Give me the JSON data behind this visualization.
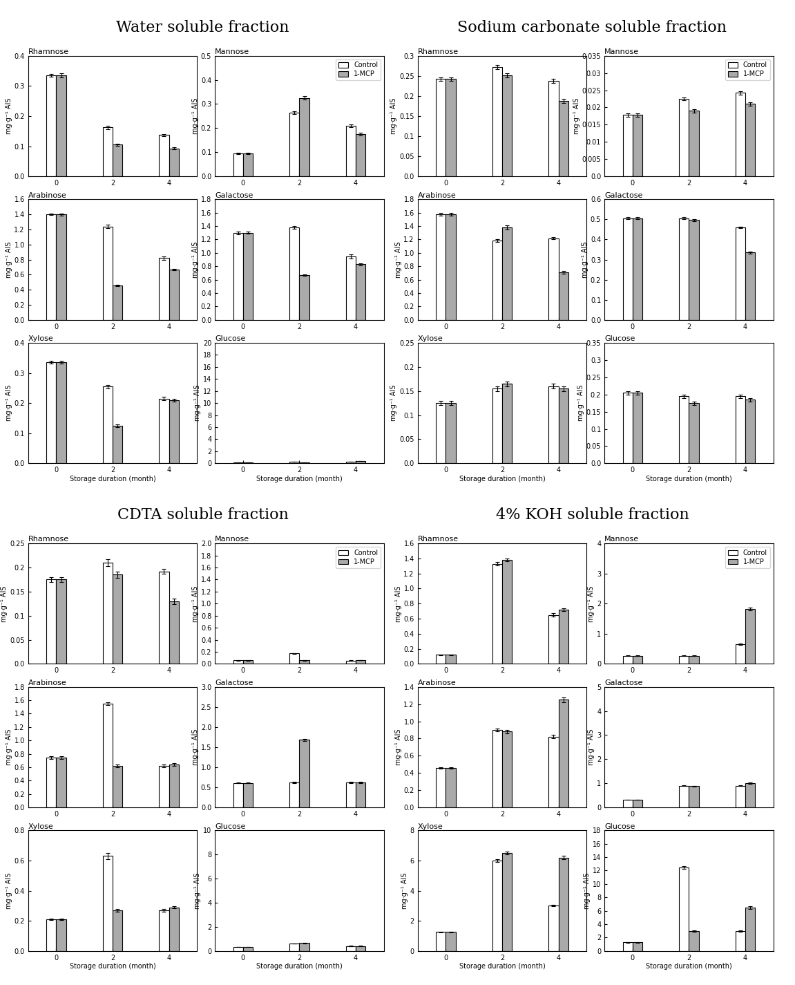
{
  "sections": [
    {
      "title": "Water soluble fraction",
      "subplots": [
        {
          "name": "Rhamnose",
          "ylim": [
            0.0,
            0.4
          ],
          "yticks": [
            0.0,
            0.1,
            0.2,
            0.3,
            0.4
          ],
          "control": [
            0.335,
            0.162,
            0.137
          ],
          "mcp": [
            0.335,
            0.105,
            0.093
          ],
          "control_err": [
            0.005,
            0.005,
            0.004
          ],
          "mcp_err": [
            0.006,
            0.004,
            0.003
          ],
          "ylabel": "mg·g⁻¹ AIS"
        },
        {
          "name": "Mannose",
          "ylim": [
            0.0,
            0.5
          ],
          "yticks": [
            0.0,
            0.1,
            0.2,
            0.3,
            0.4,
            0.5
          ],
          "control": [
            0.095,
            0.265,
            0.21
          ],
          "mcp": [
            0.095,
            0.325,
            0.175
          ],
          "control_err": [
            0.003,
            0.006,
            0.005
          ],
          "mcp_err": [
            0.003,
            0.007,
            0.005
          ],
          "ylabel": "mg·g⁻¹ AIS",
          "legend": true
        },
        {
          "name": "Arabinose",
          "ylim": [
            0.0,
            1.6
          ],
          "yticks": [
            0.0,
            0.2,
            0.4,
            0.6,
            0.8,
            1.0,
            1.2,
            1.4,
            1.6
          ],
          "control": [
            1.4,
            1.24,
            0.82
          ],
          "mcp": [
            1.4,
            0.46,
            0.67
          ],
          "control_err": [
            0.01,
            0.02,
            0.02
          ],
          "mcp_err": [
            0.015,
            0.01,
            0.01
          ],
          "ylabel": "mg·g⁻¹ AIS"
        },
        {
          "name": "Galactose",
          "ylim": [
            0.0,
            1.8
          ],
          "yticks": [
            0.0,
            0.2,
            0.4,
            0.6,
            0.8,
            1.0,
            1.2,
            1.4,
            1.6,
            1.8
          ],
          "control": [
            1.3,
            1.38,
            0.95
          ],
          "mcp": [
            1.3,
            0.67,
            0.83
          ],
          "control_err": [
            0.02,
            0.02,
            0.03
          ],
          "mcp_err": [
            0.015,
            0.01,
            0.015
          ],
          "ylabel": "mg·g⁻¹ AIS"
        },
        {
          "name": "Xylose",
          "ylim": [
            0.0,
            0.4
          ],
          "yticks": [
            0.0,
            0.1,
            0.2,
            0.3,
            0.4
          ],
          "control": [
            0.335,
            0.255,
            0.215
          ],
          "mcp": [
            0.335,
            0.125,
            0.21
          ],
          "control_err": [
            0.005,
            0.006,
            0.005
          ],
          "mcp_err": [
            0.005,
            0.004,
            0.004
          ],
          "ylabel": "mg·g⁻¹ AIS",
          "xlabel": "Storage duration (month)"
        },
        {
          "name": "Glucose",
          "ylim": [
            0,
            20
          ],
          "yticks": [
            0,
            2,
            4,
            6,
            8,
            10,
            12,
            14,
            16,
            18,
            20
          ],
          "control": [
            0.11,
            0.31,
            0.295
          ],
          "mcp": [
            0.11,
            0.12,
            0.345
          ],
          "control_err": [
            0.005,
            0.015,
            0.01
          ],
          "mcp_err": [
            0.005,
            0.005,
            0.01
          ],
          "ylabel": "mg·g⁻¹ AIS",
          "xlabel": "Storage duration (month)",
          "right_ylim": [
            0,
            20
          ],
          "right_yticks": [
            0,
            2,
            4,
            6,
            8,
            10,
            12,
            14,
            16,
            18,
            20
          ],
          "scale": 0.0556
        }
      ]
    },
    {
      "title": "Sodium carbonate soluble fraction",
      "subplots": [
        {
          "name": "Rhamnose",
          "ylim": [
            0.0,
            0.3
          ],
          "yticks": [
            0.0,
            0.05,
            0.1,
            0.15,
            0.2,
            0.25,
            0.3
          ],
          "control": [
            0.242,
            0.272,
            0.237
          ],
          "mcp": [
            0.242,
            0.252,
            0.188
          ],
          "control_err": [
            0.005,
            0.005,
            0.005
          ],
          "mcp_err": [
            0.005,
            0.005,
            0.005
          ],
          "ylabel": "mg·g⁻¹ AIS"
        },
        {
          "name": "Mannose",
          "ylim": [
            0.0,
            0.035
          ],
          "yticks": [
            0.0,
            0.005,
            0.01,
            0.015,
            0.02,
            0.025,
            0.03,
            0.035
          ],
          "control": [
            0.0178,
            0.0225,
            0.0243
          ],
          "mcp": [
            0.0178,
            0.019,
            0.021
          ],
          "control_err": [
            0.0005,
            0.0005,
            0.0005
          ],
          "mcp_err": [
            0.0005,
            0.0005,
            0.0005
          ],
          "ylabel": "mg·g⁻¹ AIS",
          "legend": true
        },
        {
          "name": "Arabinose",
          "ylim": [
            0.0,
            1.8
          ],
          "yticks": [
            0.0,
            0.2,
            0.4,
            0.6,
            0.8,
            1.0,
            1.2,
            1.4,
            1.6,
            1.8
          ],
          "control": [
            1.58,
            1.18,
            1.22
          ],
          "mcp": [
            1.58,
            1.38,
            0.71
          ],
          "control_err": [
            0.02,
            0.02,
            0.02
          ],
          "mcp_err": [
            0.02,
            0.03,
            0.02
          ],
          "ylabel": "mg·g⁻¹ AIS"
        },
        {
          "name": "Galactose",
          "ylim": [
            0.0,
            0.6
          ],
          "yticks": [
            0.0,
            0.1,
            0.2,
            0.3,
            0.4,
            0.5,
            0.6
          ],
          "control": [
            0.505,
            0.505,
            0.46
          ],
          "mcp": [
            0.505,
            0.497,
            0.335
          ],
          "control_err": [
            0.005,
            0.005,
            0.005
          ],
          "mcp_err": [
            0.005,
            0.005,
            0.005
          ],
          "ylabel": "mg·g⁻¹ AIS"
        },
        {
          "name": "Xylose",
          "ylim": [
            0.0,
            0.25
          ],
          "yticks": [
            0.0,
            0.05,
            0.1,
            0.15,
            0.2,
            0.25
          ],
          "control": [
            0.125,
            0.155,
            0.16
          ],
          "mcp": [
            0.125,
            0.165,
            0.155
          ],
          "control_err": [
            0.004,
            0.005,
            0.005
          ],
          "mcp_err": [
            0.004,
            0.005,
            0.005
          ],
          "ylabel": "mg·g⁻¹ AIS",
          "xlabel": "Storage duration (month)"
        },
        {
          "name": "Glucose",
          "ylim": [
            0.0,
            0.35
          ],
          "yticks": [
            0.0,
            0.05,
            0.1,
            0.15,
            0.2,
            0.25,
            0.3,
            0.35
          ],
          "control": [
            0.205,
            0.195,
            0.195
          ],
          "mcp": [
            0.205,
            0.175,
            0.185
          ],
          "control_err": [
            0.005,
            0.005,
            0.005
          ],
          "mcp_err": [
            0.005,
            0.005,
            0.005
          ],
          "ylabel": "mg·g⁻¹ AIS",
          "xlabel": "Storage duration (month)"
        }
      ]
    },
    {
      "title": "CDTA soluble fraction",
      "subplots": [
        {
          "name": "Rhamnose",
          "ylim": [
            0.0,
            0.25
          ],
          "yticks": [
            0.0,
            0.05,
            0.1,
            0.15,
            0.2,
            0.25
          ],
          "control": [
            0.175,
            0.21,
            0.192
          ],
          "mcp": [
            0.175,
            0.185,
            0.13
          ],
          "control_err": [
            0.005,
            0.007,
            0.005
          ],
          "mcp_err": [
            0.005,
            0.006,
            0.006
          ],
          "ylabel": "mg·g⁻¹ AIS"
        },
        {
          "name": "Mannose",
          "ylim": [
            0.0,
            2.0
          ],
          "yticks": [
            0.0,
            0.2,
            0.4,
            0.6,
            0.8,
            1.0,
            1.2,
            1.4,
            1.6,
            1.8,
            2.0
          ],
          "control": [
            0.058,
            0.175,
            0.055
          ],
          "mcp": [
            0.058,
            0.06,
            0.065
          ],
          "control_err": [
            0.003,
            0.006,
            0.003
          ],
          "mcp_err": [
            0.003,
            0.003,
            0.003
          ],
          "ylabel": "mg·g⁻¹ AIS",
          "legend": true
        },
        {
          "name": "Arabinose",
          "ylim": [
            0.0,
            1.8
          ],
          "yticks": [
            0.0,
            0.2,
            0.4,
            0.6,
            0.8,
            1.0,
            1.2,
            1.4,
            1.6,
            1.8
          ],
          "control": [
            0.74,
            1.55,
            0.62
          ],
          "mcp": [
            0.74,
            0.62,
            0.64
          ],
          "control_err": [
            0.02,
            0.02,
            0.02
          ],
          "mcp_err": [
            0.02,
            0.02,
            0.02
          ],
          "ylabel": "mg·g⁻¹ AIS"
        },
        {
          "name": "Galactose",
          "ylim": [
            0.0,
            3.0
          ],
          "yticks": [
            0.0,
            0.5,
            1.0,
            1.5,
            2.0,
            2.5,
            3.0
          ],
          "control": [
            0.61,
            0.62,
            0.62
          ],
          "mcp": [
            0.61,
            1.68,
            0.62
          ],
          "control_err": [
            0.01,
            0.01,
            0.01
          ],
          "mcp_err": [
            0.01,
            0.03,
            0.01
          ],
          "ylabel": "mg·g⁻¹ AIS"
        },
        {
          "name": "Xylose",
          "ylim": [
            0.0,
            0.8
          ],
          "yticks": [
            0.0,
            0.2,
            0.4,
            0.6,
            0.8
          ],
          "control": [
            0.21,
            0.63,
            0.27
          ],
          "mcp": [
            0.21,
            0.27,
            0.29
          ],
          "control_err": [
            0.005,
            0.02,
            0.008
          ],
          "mcp_err": [
            0.005,
            0.008,
            0.009
          ],
          "ylabel": "mg·g⁻¹ AIS",
          "xlabel": "Storage duration (month)"
        },
        {
          "name": "Glucose",
          "ylim": [
            0,
            10
          ],
          "yticks": [
            0,
            2,
            4,
            6,
            8,
            10
          ],
          "control": [
            0.315,
            0.615,
            0.415
          ],
          "mcp": [
            0.315,
            0.65,
            0.415
          ],
          "control_err": [
            0.01,
            0.02,
            0.01
          ],
          "mcp_err": [
            0.01,
            0.02,
            0.01
          ],
          "ylabel": "mg·g⁻¹ AIS",
          "xlabel": "Storage duration (month)"
        }
      ]
    },
    {
      "title": "4% KOH soluble fraction",
      "subplots": [
        {
          "name": "Rhamnose",
          "ylim": [
            0.0,
            1.6
          ],
          "yticks": [
            0.0,
            0.2,
            0.4,
            0.6,
            0.8,
            1.0,
            1.2,
            1.4,
            1.6
          ],
          "control": [
            0.12,
            1.33,
            0.65
          ],
          "mcp": [
            0.12,
            1.38,
            0.72
          ],
          "control_err": [
            0.005,
            0.02,
            0.02
          ],
          "mcp_err": [
            0.005,
            0.02,
            0.02
          ],
          "ylabel": "mg·g⁻¹ AIS"
        },
        {
          "name": "Mannose",
          "ylim": [
            0,
            4
          ],
          "yticks": [
            0,
            1,
            2,
            3,
            4
          ],
          "control": [
            0.27,
            0.27,
            0.65
          ],
          "mcp": [
            0.27,
            0.27,
            1.82
          ],
          "control_err": [
            0.01,
            0.01,
            0.02
          ],
          "mcp_err": [
            0.01,
            0.01,
            0.05
          ],
          "ylabel": "mg·g⁻¹ AIS",
          "legend": true
        },
        {
          "name": "Arabinose",
          "ylim": [
            0.0,
            1.4
          ],
          "yticks": [
            0.0,
            0.2,
            0.4,
            0.6,
            0.8,
            1.0,
            1.2,
            1.4
          ],
          "control": [
            0.46,
            0.9,
            0.82
          ],
          "mcp": [
            0.46,
            0.88,
            1.25
          ],
          "control_err": [
            0.01,
            0.02,
            0.02
          ],
          "mcp_err": [
            0.01,
            0.02,
            0.03
          ],
          "ylabel": "mg·g⁻¹ AIS"
        },
        {
          "name": "Galactose",
          "ylim": [
            0,
            5
          ],
          "yticks": [
            0,
            1,
            2,
            3,
            4,
            5
          ],
          "control": [
            0.32,
            0.9,
            0.9
          ],
          "mcp": [
            0.32,
            0.88,
            1.0
          ],
          "control_err": [
            0.01,
            0.02,
            0.02
          ],
          "mcp_err": [
            0.01,
            0.02,
            0.03
          ],
          "ylabel": "mg·g⁻¹ AIS"
        },
        {
          "name": "Xylose",
          "ylim": [
            0,
            8
          ],
          "yticks": [
            0,
            2,
            4,
            6,
            8
          ],
          "control": [
            1.25,
            6.0,
            3.0
          ],
          "mcp": [
            1.25,
            6.5,
            6.2
          ],
          "control_err": [
            0.03,
            0.1,
            0.05
          ],
          "mcp_err": [
            0.03,
            0.1,
            0.1
          ],
          "ylabel": "mg·g⁻¹ AIS",
          "xlabel": "Storage duration (month)"
        },
        {
          "name": "Glucose",
          "ylim": [
            0,
            18
          ],
          "yticks": [
            0,
            2,
            4,
            6,
            8,
            10,
            12,
            14,
            16,
            18
          ],
          "control": [
            1.3,
            12.5,
            3.0
          ],
          "mcp": [
            1.3,
            3.0,
            6.5
          ],
          "control_err": [
            0.05,
            0.2,
            0.1
          ],
          "mcp_err": [
            0.05,
            0.1,
            0.2
          ],
          "ylabel": "mg·g⁻¹ AIS",
          "xlabel": "Storage duration (month)"
        }
      ]
    }
  ],
  "x_positions": [
    0,
    2,
    4
  ],
  "x_ticks": [
    0,
    2,
    4
  ],
  "bar_width": 0.6,
  "control_color": "white",
  "mcp_color": "#AAAAAA",
  "edge_color": "black",
  "title_fontsize": 16,
  "label_fontsize": 8,
  "tick_fontsize": 7,
  "legend_fontsize": 8
}
